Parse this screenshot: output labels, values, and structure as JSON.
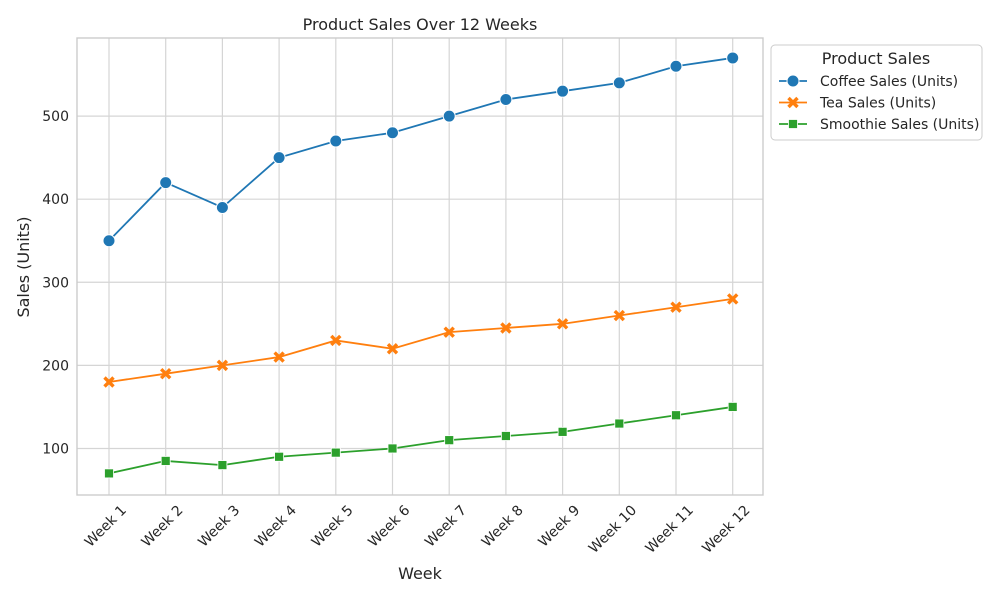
{
  "chart_data": {
    "type": "line",
    "title": "Product Sales Over 12 Weeks",
    "xlabel": "Week",
    "ylabel": "Sales (Units)",
    "categories": [
      "Week 1",
      "Week 2",
      "Week 3",
      "Week 4",
      "Week 5",
      "Week 6",
      "Week 7",
      "Week 8",
      "Week 9",
      "Week 10",
      "Week 11",
      "Week 12"
    ],
    "ylim": [
      44,
      594
    ],
    "yticks": [
      100,
      200,
      300,
      400,
      500
    ],
    "grid": true,
    "legend": {
      "title": "Product Sales",
      "placement": "outside-top-right"
    },
    "series": [
      {
        "name": "Coffee Sales (Units)",
        "color": "#1f77b4",
        "marker": "circle",
        "values": [
          350,
          420,
          390,
          450,
          470,
          480,
          500,
          520,
          530,
          540,
          560,
          570
        ]
      },
      {
        "name": "Tea Sales (Units)",
        "color": "#ff7f0e",
        "marker": "x",
        "values": [
          180,
          190,
          200,
          210,
          230,
          220,
          240,
          245,
          250,
          260,
          270,
          280
        ]
      },
      {
        "name": "Smoothie Sales (Units)",
        "color": "#2ca02c",
        "marker": "square",
        "values": [
          70,
          85,
          80,
          90,
          95,
          100,
          110,
          115,
          120,
          130,
          140,
          150
        ]
      }
    ]
  }
}
